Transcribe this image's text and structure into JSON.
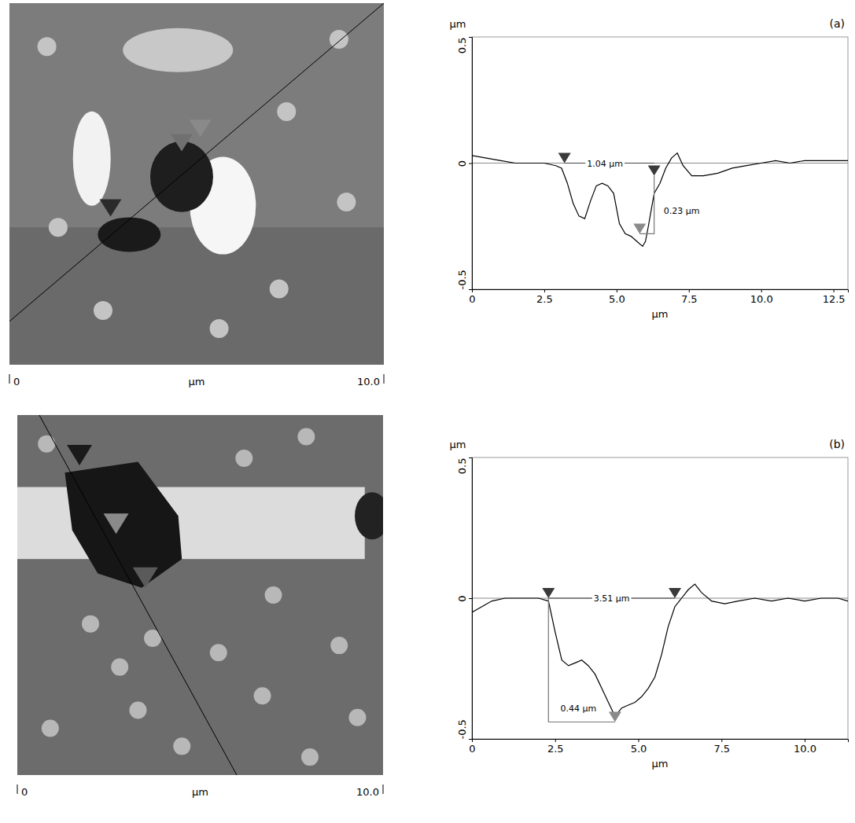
{
  "chart_data": [
    {
      "type": "image",
      "xlabel": "µm",
      "xlim": [
        0,
        10
      ],
      "xticks": [
        0,
        {
          "value": 10,
          "label": "10.0"
        }
      ]
    },
    {
      "type": "line",
      "title": "(a)",
      "xlabel": "µm",
      "ylabel": "µm",
      "xlim": [
        0,
        13
      ],
      "ylim": [
        -0.5,
        0.5
      ],
      "xticks": [
        0,
        2.5,
        {
          "value": 5,
          "label": "5.0"
        },
        7.5,
        {
          "value": 10,
          "label": "10.0"
        },
        12.5
      ],
      "yticks": [
        -0.5,
        0,
        0.5
      ],
      "grid": false,
      "series": [
        {
          "type": "line",
          "color": "#000000",
          "x": [
            0,
            0.5,
            1,
            1.5,
            2,
            2.5,
            2.9,
            3.1,
            3.3,
            3.5,
            3.7,
            3.9,
            4.1,
            4.3,
            4.5,
            4.7,
            4.9,
            5.1,
            5.3,
            5.5,
            5.7,
            5.9,
            6.0,
            6.1,
            6.3,
            6.5,
            6.7,
            6.9,
            7.1,
            7.3,
            7.6,
            8,
            8.5,
            9,
            9.5,
            10,
            10.5,
            11,
            11.5,
            12,
            12.5,
            13
          ],
          "values": [
            0.03,
            0.02,
            0.01,
            0,
            0,
            0,
            -0.01,
            -0.02,
            -0.08,
            -0.16,
            -0.21,
            -0.22,
            -0.15,
            -0.09,
            -0.08,
            -0.09,
            -0.12,
            -0.24,
            -0.28,
            -0.29,
            -0.31,
            -0.33,
            -0.31,
            -0.25,
            -0.12,
            -0.08,
            -0.02,
            0.02,
            0.04,
            -0.01,
            -0.05,
            -0.05,
            -0.04,
            -0.02,
            -0.01,
            0,
            0.01,
            0,
            0.01,
            0.01,
            0.01,
            0.01
          ]
        },
        {
          "type": "scatter",
          "marker": "triangle-down",
          "colors": [
            "#3a3a3a",
            "#3a3a3a",
            "#8a8a8a"
          ],
          "x": [
            3.2,
            6.3,
            5.8
          ],
          "values": [
            0,
            -0.05,
            -0.28
          ]
        }
      ],
      "annotations": [
        {
          "text": "1.04 µm",
          "x": 4.6,
          "y": 0
        },
        {
          "text": "0.23 µm",
          "x": 7.25,
          "y": -0.19
        }
      ]
    },
    {
      "type": "image",
      "xlabel": "µm",
      "xlim": [
        0,
        10
      ],
      "xticks": [
        0,
        {
          "value": 10,
          "label": "10.0"
        }
      ]
    },
    {
      "type": "line",
      "title": "(b)",
      "xlabel": "µm",
      "ylabel": "µm",
      "xlim": [
        0,
        11.3
      ],
      "ylim": [
        -0.5,
        0.5
      ],
      "xticks": [
        0,
        2.5,
        {
          "value": 5,
          "label": "5.0"
        },
        7.5,
        {
          "value": 10,
          "label": "10.0"
        }
      ],
      "yticks": [
        -0.5,
        0,
        0.5
      ],
      "grid": false,
      "series": [
        {
          "type": "line",
          "color": "#000000",
          "x": [
            0,
            0.3,
            0.6,
            1,
            1.5,
            2,
            2.3,
            2.5,
            2.7,
            2.9,
            3.1,
            3.3,
            3.5,
            3.7,
            3.9,
            4.1,
            4.3,
            4.5,
            4.7,
            4.9,
            5.1,
            5.3,
            5.5,
            5.7,
            5.9,
            6.1,
            6.3,
            6.5,
            6.7,
            6.9,
            7.2,
            7.6,
            8,
            8.5,
            9,
            9.5,
            10,
            10.5,
            11,
            11.3
          ],
          "values": [
            -0.05,
            -0.03,
            -0.01,
            0,
            0,
            0,
            -0.01,
            -0.12,
            -0.22,
            -0.24,
            -0.23,
            -0.22,
            -0.24,
            -0.27,
            -0.32,
            -0.37,
            -0.42,
            -0.39,
            -0.38,
            -0.37,
            -0.35,
            -0.32,
            -0.28,
            -0.2,
            -0.1,
            -0.03,
            0,
            0.03,
            0.05,
            0.02,
            -0.01,
            -0.02,
            -0.01,
            0,
            -0.01,
            0,
            -0.01,
            0,
            0,
            -0.01
          ]
        },
        {
          "type": "scatter",
          "marker": "triangle-down",
          "colors": [
            "#3a3a3a",
            "#3a3a3a",
            "#8a8a8a"
          ],
          "x": [
            2.3,
            6.1,
            4.3
          ],
          "values": [
            0,
            0,
            -0.44
          ]
        }
      ],
      "annotations": [
        {
          "text": "3.51 µm",
          "x": 4.2,
          "y": 0
        },
        {
          "text": "0.44 µm",
          "x": 3.2,
          "y": -0.39
        }
      ]
    }
  ]
}
